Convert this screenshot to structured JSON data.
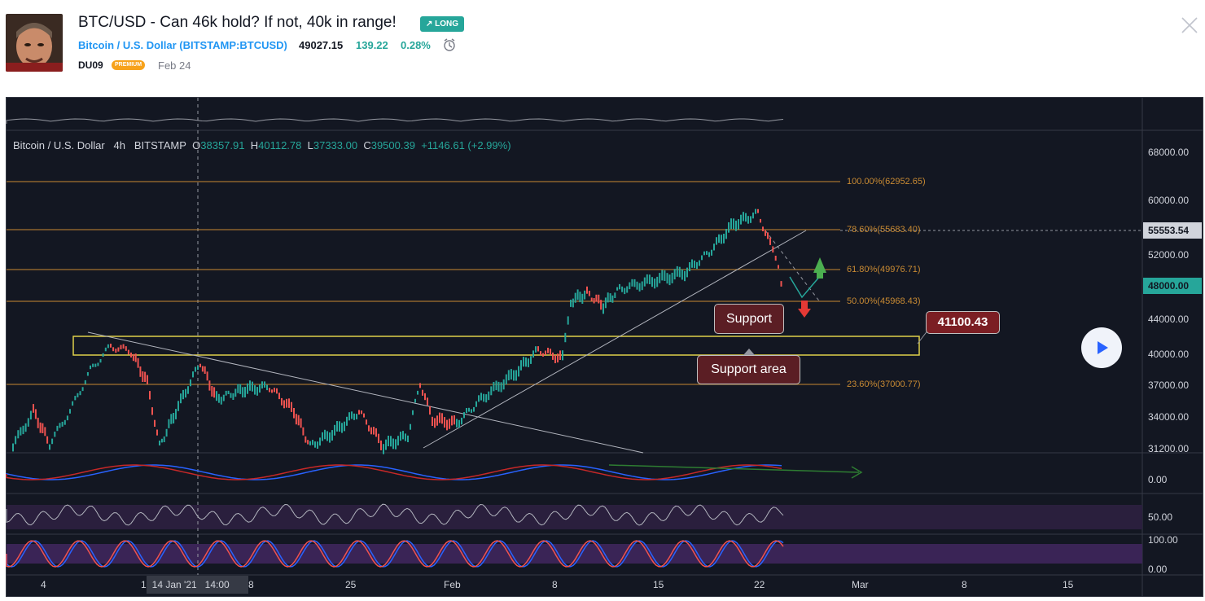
{
  "idea": {
    "title": "BTC/USD - Can 46k hold? If not, 40k in range!",
    "direction_badge": "LONG",
    "symbol_name": "Bitcoin / U.S. Dollar",
    "symbol_code": "(BITSTAMP:BTCUSD)",
    "last_price": "49027.15",
    "change": "139.22",
    "change_pct": "0.28%",
    "author": "DU09",
    "author_badge": "PREMIUM",
    "date": "Feb 24"
  },
  "legend": {
    "symbol": "Bitcoin / U.S. Dollar",
    "interval": "4h",
    "exchange": "BITSTAMP",
    "o_label": "O",
    "o": "38357.91",
    "h_label": "H",
    "h": "40112.78",
    "l_label": "L",
    "l": "37333.00",
    "c_label": "C",
    "c": "39500.39",
    "chg": "+1146.61 (+2.99%)"
  },
  "price_axis": [
    "68000.00",
    "60000.00",
    "52000.00",
    "44000.00",
    "40000.00",
    "37000.00",
    "34000.00",
    "31200.00"
  ],
  "price_tags": {
    "current": "55553.54",
    "green": "48000.00"
  },
  "fib_levels": [
    {
      "label": "100.00%(62952.65)"
    },
    {
      "label": "78.60%(55683.40)"
    },
    {
      "label": "61.80%(49976.71)"
    },
    {
      "label": "50.00%(45968.43)"
    },
    {
      "label": "23.60%(37000.77)"
    }
  ],
  "annotations": {
    "support": "Support",
    "support_area": "Support area",
    "price_label": "41100.43"
  },
  "oscillator_axis": {
    "macd_zero": "0.00",
    "rsi_mid": "50.00",
    "stoch_top": "100.00",
    "stoch_bottom": "0.00"
  },
  "time_axis": [
    "4",
    "1",
    "8",
    "25",
    "Feb",
    "8",
    "15",
    "22",
    "Mar",
    "8",
    "15"
  ],
  "crosshair_label": "14 Jan '21   14:00",
  "colors": {
    "background": "#131722",
    "up": "#26a69a",
    "down": "#ef5350",
    "fib": "#c88a33",
    "long_badge": "#26a69a",
    "premium": "#f7a21b"
  },
  "icons": [
    "alarm-icon",
    "close-icon",
    "play-icon",
    "arrow-up-icon",
    "arrow-down-icon"
  ]
}
